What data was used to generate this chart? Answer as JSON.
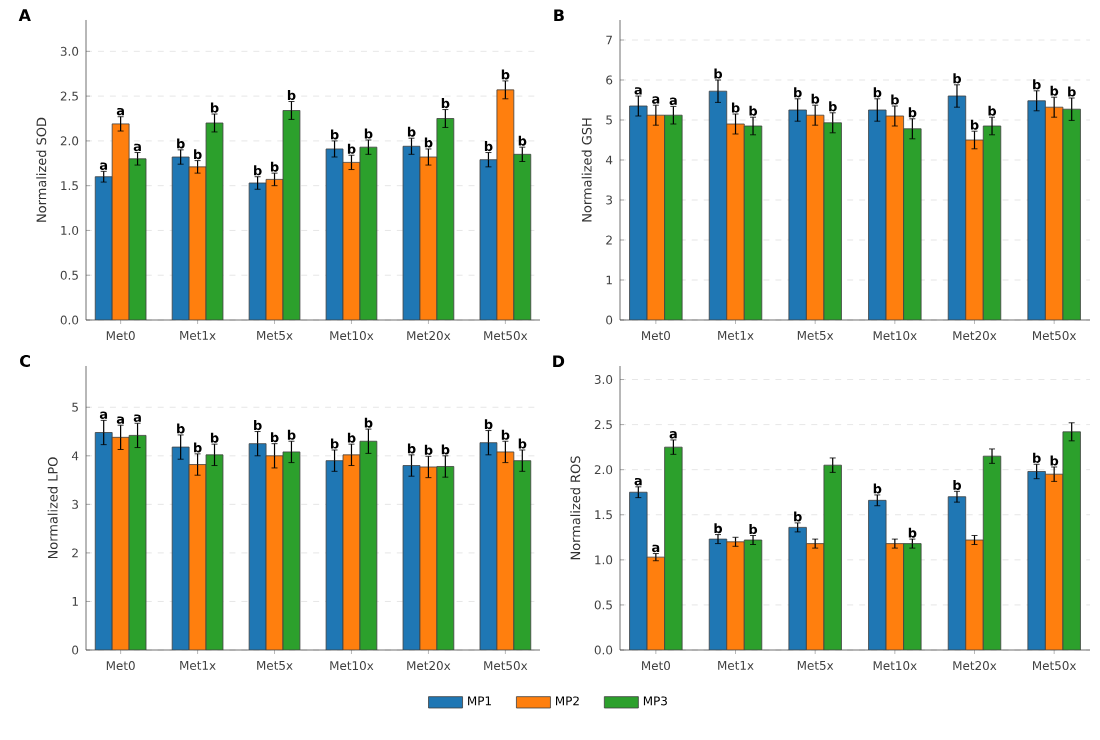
{
  "chart_data": [
    {
      "type": "bar",
      "title": "A",
      "ylabel": "Normalized SOD",
      "categories": [
        "Met0",
        "Met1x",
        "Met5x",
        "Met10x",
        "Met20x",
        "Met50x"
      ],
      "series": [
        {
          "name": "MP1",
          "color": "#1f77b4",
          "values": [
            1.6,
            1.82,
            1.53,
            1.91,
            1.94,
            1.79
          ],
          "errors": [
            0.06,
            0.08,
            0.07,
            0.09,
            0.09,
            0.08
          ],
          "value_labels": [
            "a",
            "b",
            "b",
            "b",
            "b",
            "b"
          ]
        },
        {
          "name": "MP2",
          "color": "#ff7f0e",
          "values": [
            2.19,
            1.71,
            1.57,
            1.76,
            1.82,
            2.57
          ],
          "errors": [
            0.08,
            0.07,
            0.07,
            0.08,
            0.09,
            0.1
          ],
          "value_labels": [
            "a",
            "b",
            "b",
            "b",
            "b",
            "b"
          ]
        },
        {
          "name": "MP3",
          "color": "#2ca02c",
          "values": [
            1.8,
            2.2,
            2.34,
            1.93,
            2.25,
            1.85
          ],
          "errors": [
            0.07,
            0.1,
            0.1,
            0.08,
            0.1,
            0.08
          ],
          "value_labels": [
            "a",
            "b",
            "b",
            "b",
            "b",
            "b"
          ]
        }
      ],
      "ylim": [
        0,
        3.35
      ],
      "yticks": [
        {
          "value": 0,
          "label": "0.0"
        },
        {
          "value": 0.5,
          "label": "0.5"
        },
        {
          "value": 1,
          "label": "1.0"
        },
        {
          "value": 1.5,
          "label": "1.5"
        },
        {
          "value": 2,
          "label": "2.0"
        },
        {
          "value": 2.5,
          "label": "2.5"
        },
        {
          "value": 3,
          "label": "3.0"
        }
      ],
      "grid": "y",
      "legend": "bottom"
    },
    {
      "type": "bar",
      "title": "B",
      "ylabel": "Normalized GSH",
      "categories": [
        "Met0",
        "Met1x",
        "Met5x",
        "Met10x",
        "Met20x",
        "Met50x"
      ],
      "series": [
        {
          "color": "#1f77b4",
          "values": [
            5.35,
            5.72,
            5.25,
            5.25,
            5.6,
            5.48
          ],
          "errors": [
            0.25,
            0.28,
            0.28,
            0.28,
            0.28,
            0.25
          ],
          "value_labels": [
            "a",
            "b",
            "b",
            "b",
            "b",
            "b"
          ]
        },
        {
          "color": "#ff7f0e",
          "values": [
            5.12,
            4.9,
            5.12,
            5.1,
            4.5,
            5.32
          ],
          "errors": [
            0.25,
            0.25,
            0.25,
            0.25,
            0.22,
            0.25
          ],
          "value_labels": [
            "a",
            "b",
            "b",
            "b",
            "b",
            "b"
          ]
        },
        {
          "color": "#2ca02c",
          "values": [
            5.12,
            4.85,
            4.93,
            4.78,
            4.85,
            5.27
          ],
          "errors": [
            0.22,
            0.22,
            0.25,
            0.25,
            0.22,
            0.28
          ],
          "value_labels": [
            "a",
            "b",
            "b",
            "b",
            "b",
            "b"
          ]
        }
      ],
      "ylim": [
        0,
        7.5
      ],
      "yticks": [
        0,
        1,
        2,
        3,
        4,
        5,
        6,
        7
      ],
      "grid": "y"
    },
    {
      "type": "bar",
      "title": "C",
      "ylabel": "Normalized LPO",
      "categories": [
        "Met0",
        "Met1x",
        "Met5x",
        "Met10x",
        "Met20x",
        "Met50x"
      ],
      "series": [
        {
          "color": "#1f77b4",
          "values": [
            4.48,
            4.18,
            4.25,
            3.9,
            3.8,
            4.27
          ],
          "errors": [
            0.25,
            0.25,
            0.25,
            0.22,
            0.22,
            0.25
          ],
          "value_labels": [
            "a",
            "b",
            "b",
            "b",
            "b",
            "b"
          ]
        },
        {
          "color": "#ff7f0e",
          "values": [
            4.38,
            3.82,
            4.0,
            4.02,
            3.77,
            4.08
          ],
          "errors": [
            0.25,
            0.22,
            0.25,
            0.22,
            0.22,
            0.22
          ],
          "value_labels": [
            "a",
            "b",
            "b",
            "b",
            "b",
            "b"
          ]
        },
        {
          "color": "#2ca02c",
          "values": [
            4.42,
            4.02,
            4.08,
            4.3,
            3.78,
            3.9
          ],
          "errors": [
            0.25,
            0.22,
            0.22,
            0.25,
            0.22,
            0.22
          ],
          "value_labels": [
            "a",
            "b",
            "b",
            "b",
            "b",
            "b"
          ]
        }
      ],
      "ylim": [
        0,
        5.85
      ],
      "yticks": [
        0,
        1,
        2,
        3,
        4,
        5
      ],
      "grid": "y"
    },
    {
      "type": "bar",
      "title": "D",
      "ylabel": "Normalized ROS",
      "categories": [
        "Met0",
        "Met1x",
        "Met5x",
        "Met10x",
        "Met20x",
        "Met50x"
      ],
      "series": [
        {
          "color": "#1f77b4",
          "values": [
            1.75,
            1.23,
            1.36,
            1.66,
            1.7,
            1.98
          ],
          "errors": [
            0.06,
            0.05,
            0.05,
            0.06,
            0.06,
            0.08
          ],
          "value_labels": [
            "a",
            "b",
            "b",
            "b",
            "b",
            "b"
          ]
        },
        {
          "color": "#ff7f0e",
          "values": [
            1.03,
            1.2,
            1.18,
            1.18,
            1.22,
            1.95
          ],
          "errors": [
            0.04,
            0.05,
            0.05,
            0.05,
            0.05,
            0.08
          ],
          "value_labels": [
            "a",
            null,
            null,
            null,
            null,
            "b"
          ]
        },
        {
          "color": "#2ca02c",
          "values": [
            2.25,
            1.22,
            2.05,
            1.18,
            2.15,
            2.42
          ],
          "errors": [
            0.08,
            0.05,
            0.08,
            0.05,
            0.08,
            0.1
          ],
          "value_labels": [
            "a",
            "b",
            null,
            "b",
            null,
            null
          ]
        }
      ],
      "ylim": [
        0,
        3.15
      ],
      "yticks": [
        {
          "value": 0,
          "label": "0.0"
        },
        {
          "value": 0.5,
          "label": "0.5"
        },
        {
          "value": 1,
          "label": "1.0"
        },
        {
          "value": 1.5,
          "label": "1.5"
        },
        {
          "value": 2,
          "label": "2.0"
        },
        {
          "value": 2.5,
          "label": "2.5"
        },
        {
          "value": 3,
          "label": "3.0"
        }
      ],
      "grid": "y"
    }
  ]
}
